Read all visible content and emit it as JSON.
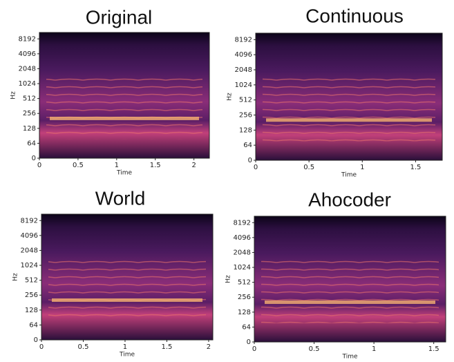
{
  "chart_data": [
    {
      "type": "spectrogram",
      "title": "Original",
      "xlabel": "Time",
      "ylabel": "Hz",
      "xlim": [
        0,
        2.2
      ],
      "xticks": [
        0,
        0.5,
        1,
        1.5,
        2
      ],
      "ylim": [
        0,
        11025
      ],
      "yticks": [
        0,
        64,
        128,
        256,
        512,
        1024,
        2048,
        4096,
        8192
      ],
      "yscale": "symlog",
      "linthresh": 64
    },
    {
      "type": "spectrogram",
      "title": "Continuous",
      "xlabel": "Time",
      "ylabel": "Hz",
      "xlim": [
        0,
        1.75
      ],
      "xticks": [
        0,
        0.5,
        1,
        1.5
      ],
      "ylim": [
        0,
        11025
      ],
      "yticks": [
        0,
        64,
        128,
        256,
        512,
        1024,
        2048,
        4096,
        8192
      ],
      "yscale": "symlog",
      "linthresh": 64
    },
    {
      "type": "spectrogram",
      "title": "World",
      "xlabel": "Time",
      "ylabel": "Hz",
      "xlim": [
        0,
        2.05
      ],
      "xticks": [
        0,
        0.5,
        1,
        1.5,
        2
      ],
      "ylim": [
        0,
        11025
      ],
      "yticks": [
        0,
        64,
        128,
        256,
        512,
        1024,
        2048,
        4096,
        8192
      ],
      "yscale": "symlog",
      "linthresh": 64
    },
    {
      "type": "spectrogram",
      "title": "Ahocoder",
      "xlabel": "Time",
      "ylabel": "Hz",
      "xlim": [
        0,
        1.6
      ],
      "xticks": [
        0,
        0.5,
        1,
        1.5
      ],
      "ylim": [
        0,
        11025
      ],
      "yticks": [
        0,
        64,
        128,
        256,
        512,
        1024,
        2048,
        4096,
        8192
      ],
      "yscale": "symlog",
      "linthresh": 64
    }
  ]
}
